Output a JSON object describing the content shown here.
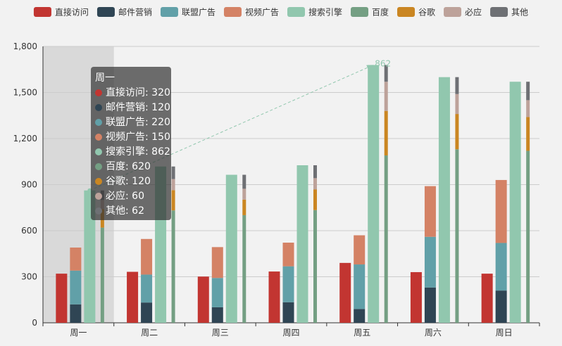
{
  "chart_data": {
    "type": "bar",
    "categories": [
      "周一",
      "周二",
      "周三",
      "周四",
      "周五",
      "周六",
      "周日"
    ],
    "ylim": [
      0,
      1800
    ],
    "yticks": [
      0,
      300,
      600,
      900,
      1200,
      1500,
      1800
    ],
    "ytick_labels": [
      "0",
      "300",
      "600",
      "900",
      "1,200",
      "1,500",
      "1,800"
    ],
    "stacks": {
      "广告": [
        "邮件营销",
        "联盟广告",
        "视频广告"
      ],
      "搜索引擎细分": [
        "百度",
        "谷歌",
        "必应",
        "其他"
      ]
    },
    "series": [
      {
        "name": "直接访问",
        "color": "#c23531",
        "values": [
          320,
          332,
          301,
          334,
          390,
          330,
          320
        ]
      },
      {
        "name": "邮件营销",
        "color": "#2f4554",
        "values": [
          120,
          132,
          101,
          134,
          90,
          230,
          210
        ]
      },
      {
        "name": "联盟广告",
        "color": "#61a0a8",
        "values": [
          220,
          182,
          191,
          234,
          290,
          330,
          310
        ]
      },
      {
        "name": "视频广告",
        "color": "#d48265",
        "values": [
          150,
          232,
          201,
          154,
          190,
          330,
          410
        ]
      },
      {
        "name": "搜索引擎",
        "color": "#91c7ae",
        "values": [
          862,
          1018,
          964,
          1026,
          1679,
          1600,
          1570
        ]
      },
      {
        "name": "百度",
        "color": "#749f83",
        "values": [
          620,
          732,
          701,
          734,
          1090,
          1130,
          1120
        ]
      },
      {
        "name": "谷歌",
        "color": "#ca8622",
        "values": [
          120,
          132,
          101,
          134,
          290,
          230,
          220
        ]
      },
      {
        "name": "必应",
        "color": "#bda29a",
        "values": [
          60,
          72,
          71,
          74,
          190,
          130,
          110
        ]
      },
      {
        "name": "其他",
        "color": "#6e7074",
        "values": [
          62,
          82,
          91,
          84,
          109,
          110,
          120
        ]
      }
    ],
    "markline": {
      "from_category": "周一",
      "from_value": 862,
      "to_category": "周五",
      "to_value": 1679,
      "label": "862",
      "color": "#91c7ae"
    },
    "highlight_category": "周一"
  },
  "tooltip": {
    "title": "周一",
    "rows": [
      {
        "name": "直接访问",
        "value": "320",
        "color": "#c23531"
      },
      {
        "name": "邮件营销",
        "value": "120",
        "color": "#2f4554"
      },
      {
        "name": "联盟广告",
        "value": "220",
        "color": "#61a0a8"
      },
      {
        "name": "视频广告",
        "value": "150",
        "color": "#d48265"
      },
      {
        "name": "搜索引擎",
        "value": "862",
        "color": "#91c7ae"
      },
      {
        "name": "百度",
        "value": "620",
        "color": "#749f83"
      },
      {
        "name": "谷歌",
        "value": "120",
        "color": "#ca8622"
      },
      {
        "name": "必应",
        "value": "60",
        "color": "#bda29a"
      },
      {
        "name": "其他",
        "value": "62",
        "color": "#6e7074"
      }
    ]
  }
}
